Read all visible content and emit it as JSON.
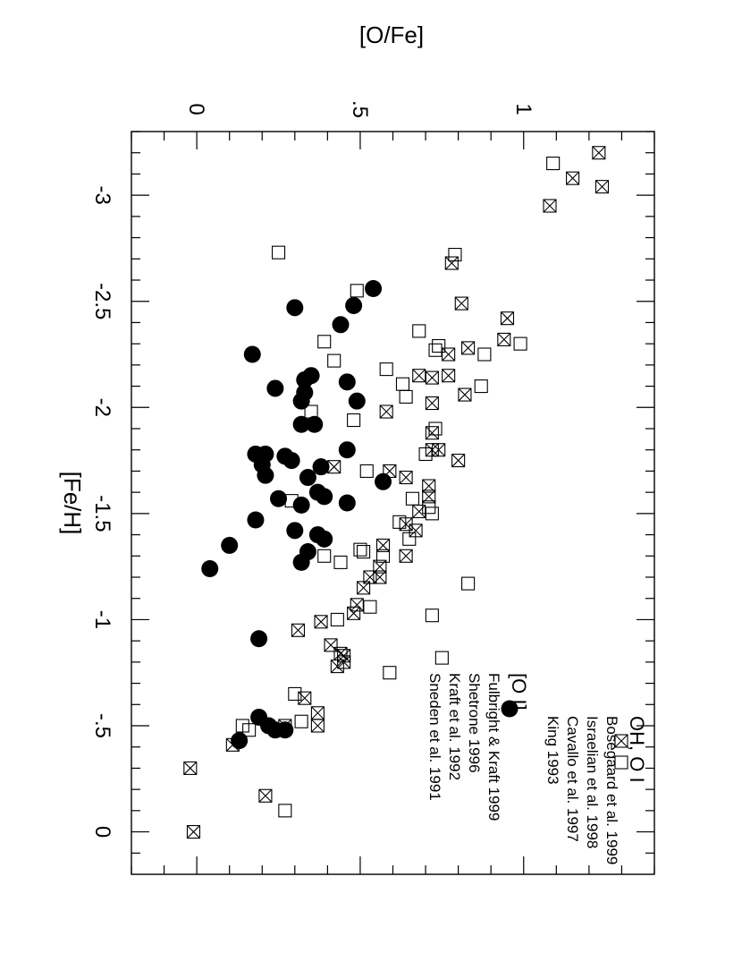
{
  "chart_data": {
    "type": "scatter",
    "xlabel": "[Fe/H]",
    "ylabel": "[O/Fe]",
    "xlim": [
      0.2,
      -3.3
    ],
    "ylim": [
      -0.2,
      1.4
    ],
    "x_ticks": [
      {
        "value": 0,
        "label": "0"
      },
      {
        "value": -0.5,
        "label": "-.5"
      },
      {
        "value": -1,
        "label": "-1"
      },
      {
        "value": -1.5,
        "label": "-1.5"
      },
      {
        "value": -2,
        "label": "-2"
      },
      {
        "value": -2.5,
        "label": "-2.5"
      },
      {
        "value": -3,
        "label": "-3"
      }
    ],
    "y_ticks": [
      {
        "value": 0,
        "label": "0"
      },
      {
        "value": 0.5,
        "label": ".5"
      },
      {
        "value": 1,
        "label": "1"
      }
    ],
    "legend": {
      "groups": [
        {
          "title": "OH, O I",
          "entries": [
            {
              "marker": "square-x",
              "label": "Bosegaard et al. 1999"
            },
            {
              "marker": "square",
              "label": "Israelian et al. 1998"
            },
            {
              "marker": "none",
              "label": "Cavallo et al. 1997"
            },
            {
              "marker": "none",
              "label": "King 1993"
            }
          ]
        },
        {
          "title": "[O I]",
          "entries": [
            {
              "marker": "circle",
              "label": "Fulbright & Kraft 1999"
            },
            {
              "marker": "none",
              "label": "Shetrone 1996"
            },
            {
              "marker": "none",
              "label": "Kraft et al. 1992"
            },
            {
              "marker": "none",
              "label": "Sneden et al. 1991"
            }
          ]
        }
      ]
    },
    "series": [
      {
        "marker": "square-x",
        "points": [
          [
            -3.2,
            1.23
          ],
          [
            -3.08,
            1.15
          ],
          [
            -2.95,
            1.08
          ],
          [
            -3.04,
            1.24
          ],
          [
            -2.68,
            0.78
          ],
          [
            -2.49,
            0.81
          ],
          [
            -2.42,
            0.95
          ],
          [
            -2.32,
            0.94
          ],
          [
            -2.28,
            0.83
          ],
          [
            -2.25,
            0.77
          ],
          [
            -2.15,
            0.77
          ],
          [
            -2.15,
            0.68
          ],
          [
            -2.14,
            0.72
          ],
          [
            -2.06,
            0.82
          ],
          [
            -2.02,
            0.72
          ],
          [
            -1.98,
            0.58
          ],
          [
            -1.8,
            0.72
          ],
          [
            -1.8,
            0.74
          ],
          [
            -1.75,
            0.8
          ],
          [
            -1.67,
            0.64
          ],
          [
            -1.63,
            0.71
          ],
          [
            -1.58,
            0.71
          ],
          [
            -1.51,
            0.68
          ],
          [
            -1.45,
            0.64
          ],
          [
            -1.42,
            0.67
          ],
          [
            -1.35,
            0.57
          ],
          [
            -1.3,
            0.64
          ],
          [
            -1.25,
            0.56
          ],
          [
            -1.2,
            0.56
          ],
          [
            -1.15,
            0.51
          ],
          [
            -1.07,
            0.49
          ],
          [
            -1.03,
            0.48
          ],
          [
            -0.99,
            0.38
          ],
          [
            -0.88,
            0.41
          ],
          [
            -0.84,
            0.44
          ],
          [
            -0.83,
            0.45
          ],
          [
            -0.8,
            0.45
          ],
          [
            -0.78,
            0.43
          ],
          [
            -0.95,
            0.31
          ],
          [
            -0.63,
            0.33
          ],
          [
            -0.56,
            0.37
          ],
          [
            -0.5,
            0.37
          ],
          [
            -0.5,
            0.27
          ],
          [
            -0.41,
            0.11
          ],
          [
            -0.3,
            -0.02
          ],
          [
            -0.17,
            0.21
          ],
          [
            0.0,
            -0.01
          ],
          [
            -1.2,
            0.53
          ],
          [
            -1.7,
            0.59
          ],
          [
            -1.72,
            0.42
          ],
          [
            -1.88,
            0.72
          ]
        ]
      },
      {
        "marker": "square",
        "points": [
          [
            -3.15,
            1.09
          ],
          [
            -2.72,
            0.79
          ],
          [
            -2.73,
            0.25
          ],
          [
            -2.55,
            0.49
          ],
          [
            -2.36,
            0.68
          ],
          [
            -2.29,
            0.74
          ],
          [
            -2.27,
            0.73
          ],
          [
            -2.3,
            0.99
          ],
          [
            -2.25,
            0.88
          ],
          [
            -2.22,
            0.42
          ],
          [
            -2.18,
            0.58
          ],
          [
            -2.11,
            0.63
          ],
          [
            -2.1,
            0.87
          ],
          [
            -2.05,
            0.64
          ],
          [
            -1.98,
            0.35
          ],
          [
            -1.94,
            0.48
          ],
          [
            -1.9,
            0.73
          ],
          [
            -1.78,
            0.7
          ],
          [
            -1.7,
            0.52
          ],
          [
            -1.57,
            0.66
          ],
          [
            -1.53,
            0.71
          ],
          [
            -1.5,
            0.72
          ],
          [
            -1.46,
            0.62
          ],
          [
            -1.38,
            0.65
          ],
          [
            -1.33,
            0.5
          ],
          [
            -1.32,
            0.51
          ],
          [
            -1.3,
            0.57
          ],
          [
            -1.3,
            0.39
          ],
          [
            -1.17,
            0.83
          ],
          [
            -1.06,
            0.53
          ],
          [
            -1.02,
            0.72
          ],
          [
            -1.0,
            0.43
          ],
          [
            -0.82,
            0.75
          ],
          [
            -0.75,
            0.59
          ],
          [
            -0.65,
            0.3
          ],
          [
            -0.5,
            0.14
          ],
          [
            -0.48,
            0.16
          ],
          [
            -0.52,
            0.32
          ],
          [
            -0.1,
            0.27
          ],
          [
            -1.56,
            0.29
          ],
          [
            -1.27,
            0.44
          ],
          [
            -2.31,
            0.39
          ]
        ]
      },
      {
        "marker": "circle",
        "points": [
          [
            -2.56,
            0.54
          ],
          [
            -2.48,
            0.48
          ],
          [
            -2.47,
            0.3
          ],
          [
            -2.39,
            0.44
          ],
          [
            -2.25,
            0.17
          ],
          [
            -2.15,
            0.35
          ],
          [
            -2.13,
            0.33
          ],
          [
            -2.12,
            0.46
          ],
          [
            -2.09,
            0.24
          ],
          [
            -2.07,
            0.33
          ],
          [
            -2.03,
            0.49
          ],
          [
            -2.03,
            0.32
          ],
          [
            -1.92,
            0.32
          ],
          [
            -1.92,
            0.36
          ],
          [
            -1.78,
            0.18
          ],
          [
            -1.78,
            0.21
          ],
          [
            -1.8,
            0.46
          ],
          [
            -1.77,
            0.27
          ],
          [
            -1.75,
            0.29
          ],
          [
            -1.73,
            0.2
          ],
          [
            -1.72,
            0.38
          ],
          [
            -1.68,
            0.21
          ],
          [
            -1.67,
            0.34
          ],
          [
            -1.65,
            0.57
          ],
          [
            -1.6,
            0.37
          ],
          [
            -1.58,
            0.39
          ],
          [
            -1.57,
            0.25
          ],
          [
            -1.55,
            0.46
          ],
          [
            -1.54,
            0.32
          ],
          [
            -1.47,
            0.18
          ],
          [
            -1.42,
            0.3
          ],
          [
            -1.4,
            0.37
          ],
          [
            -1.38,
            0.39
          ],
          [
            -1.35,
            0.1
          ],
          [
            -1.32,
            0.34
          ],
          [
            -1.27,
            0.32
          ],
          [
            -1.24,
            0.04
          ],
          [
            -0.91,
            0.19
          ],
          [
            -0.54,
            0.19
          ],
          [
            -0.5,
            0.22
          ],
          [
            -0.48,
            0.27
          ],
          [
            -0.48,
            0.24
          ],
          [
            -0.43,
            0.13
          ]
        ]
      }
    ]
  }
}
